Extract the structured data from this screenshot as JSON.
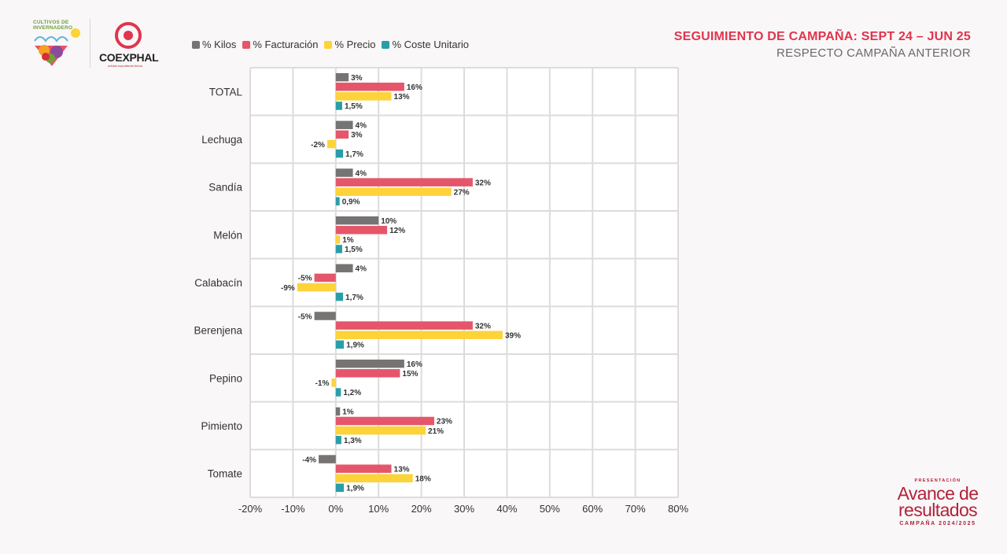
{
  "header": {
    "title": "SEGUIMIENTO DE CAMPAÑA: SEPT 24 – JUN 25",
    "subtitle": "RESPECTO CAMPAÑA ANTERIOR"
  },
  "logos": {
    "cultivos": "CULTIVOS DE INVERNADERO",
    "coexphal": "COEXPHAL",
    "coexphal_tagline": "unidos exportando futuro"
  },
  "brand": {
    "pre": "PRESENTACIÓN",
    "main": "Avance de resultados",
    "post": "CAMPAÑA 2024/2025"
  },
  "colors": {
    "kilos": "#767373",
    "facturacion": "#e5566b",
    "precio": "#fdd33a",
    "coste": "#2a9ea8",
    "accent": "#e0354d",
    "grid": "#dcdcdc"
  },
  "chart_data": {
    "type": "bar",
    "orientation": "horizontal",
    "categories": [
      "TOTAL",
      "Lechuga",
      "Sandía",
      "Melón",
      "Calabacín",
      "Berenjena",
      "Pepino",
      "Pimiento",
      "Tomate"
    ],
    "series": [
      {
        "name": "% Kilos",
        "values": [
          3,
          4,
          4,
          10,
          4,
          -5,
          16,
          1,
          -4
        ],
        "labels": [
          "3%",
          "4%",
          "4%",
          "10%",
          "4%",
          "-5%",
          "16%",
          "1%",
          "-4%"
        ]
      },
      {
        "name": "% Facturación",
        "values": [
          16,
          3,
          32,
          12,
          -5,
          32,
          15,
          23,
          13
        ],
        "labels": [
          "16%",
          "3%",
          "32%",
          "12%",
          "-5%",
          "32%",
          "15%",
          "23%",
          "13%"
        ]
      },
      {
        "name": "% Precio",
        "values": [
          13,
          -2,
          27,
          1,
          -9,
          39,
          -1,
          21,
          18
        ],
        "labels": [
          "13%",
          "-2%",
          "27%",
          "1%",
          "-9%",
          "39%",
          "-1%",
          "21%",
          "18%"
        ]
      },
      {
        "name": "% Coste Unitario",
        "values": [
          1.5,
          1.7,
          0.9,
          1.5,
          1.7,
          1.9,
          1.2,
          1.3,
          1.9
        ],
        "labels": [
          "1,5%",
          "1,7%",
          "0,9%",
          "1,5%",
          "1,7%",
          "1,9%",
          "1,2%",
          "1,3%",
          "1,9%"
        ]
      }
    ],
    "xlim": [
      -20,
      80
    ],
    "xticks": [
      -20,
      -10,
      0,
      10,
      20,
      30,
      40,
      50,
      60,
      70,
      80
    ],
    "xtick_labels": [
      "-20%",
      "-10%",
      "0%",
      "10%",
      "20%",
      "30%",
      "40%",
      "50%",
      "60%",
      "70%",
      "80%"
    ],
    "grid": true,
    "legend_position": "top-left"
  }
}
